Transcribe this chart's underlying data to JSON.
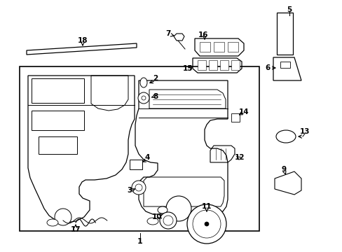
{
  "bg_color": "#ffffff",
  "fig_width": 4.89,
  "fig_height": 3.6,
  "dpi": 100,
  "line_color": "#000000"
}
